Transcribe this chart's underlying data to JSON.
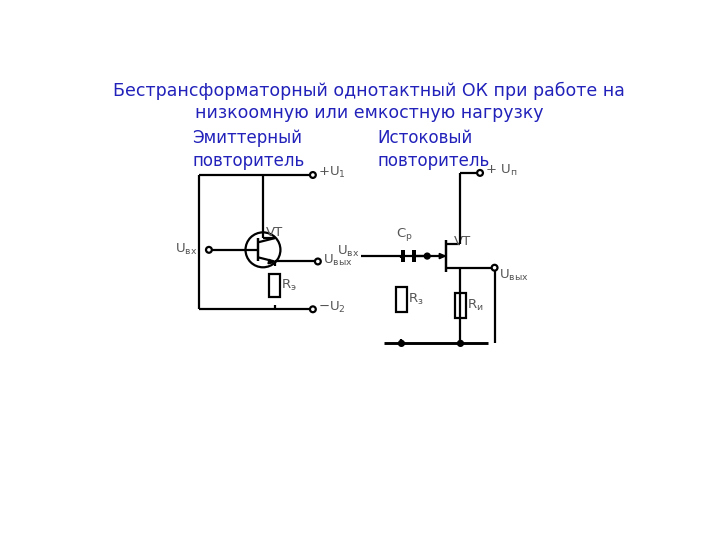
{
  "title_line1": "Бестрансформаторный однотактный ОК при работе на",
  "title_line2": "низкоомную или емкостную нагрузку",
  "title_color": "#2222bb",
  "title_fontsize": 12.5,
  "label_emitter": "Эмиттерный\nповторитель",
  "label_source": "Истоковый\nповторитель",
  "label_color": "#2222bb",
  "label_fontsize": 12,
  "circuit_color": "#000000",
  "text_color": "#555555",
  "lw": 1.6,
  "bg_color": "#ffffff"
}
